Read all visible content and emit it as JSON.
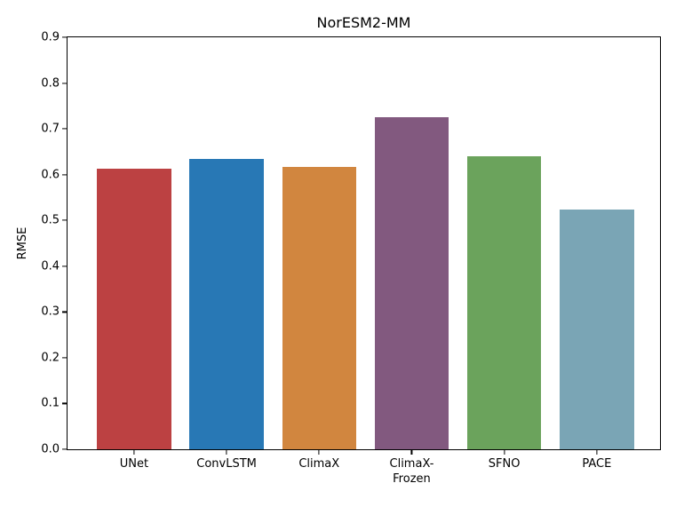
{
  "figure": {
    "title": "NorESM2-MM",
    "ylabel": "RMSE"
  },
  "chart_data": {
    "type": "bar",
    "title": "NorESM2-MM",
    "xlabel": "",
    "ylabel": "RMSE",
    "categories": [
      "UNet",
      "ConvLSTM",
      "ClimaX",
      "ClimaX-\nFrozen",
      "SFNO",
      "PACE"
    ],
    "values": [
      0.612,
      0.635,
      0.617,
      0.726,
      0.641,
      0.524
    ],
    "bar_colors": [
      "#bc4142",
      "#2878b5",
      "#d1863f",
      "#82597f",
      "#6ba35c",
      "#7aa5b5"
    ],
    "ylim": [
      0.0,
      0.9
    ],
    "yticks": [
      "0.0",
      "0.1",
      "0.2",
      "0.3",
      "0.4",
      "0.5",
      "0.6",
      "0.7",
      "0.8",
      "0.9"
    ],
    "grid": false,
    "legend_position": "none"
  }
}
